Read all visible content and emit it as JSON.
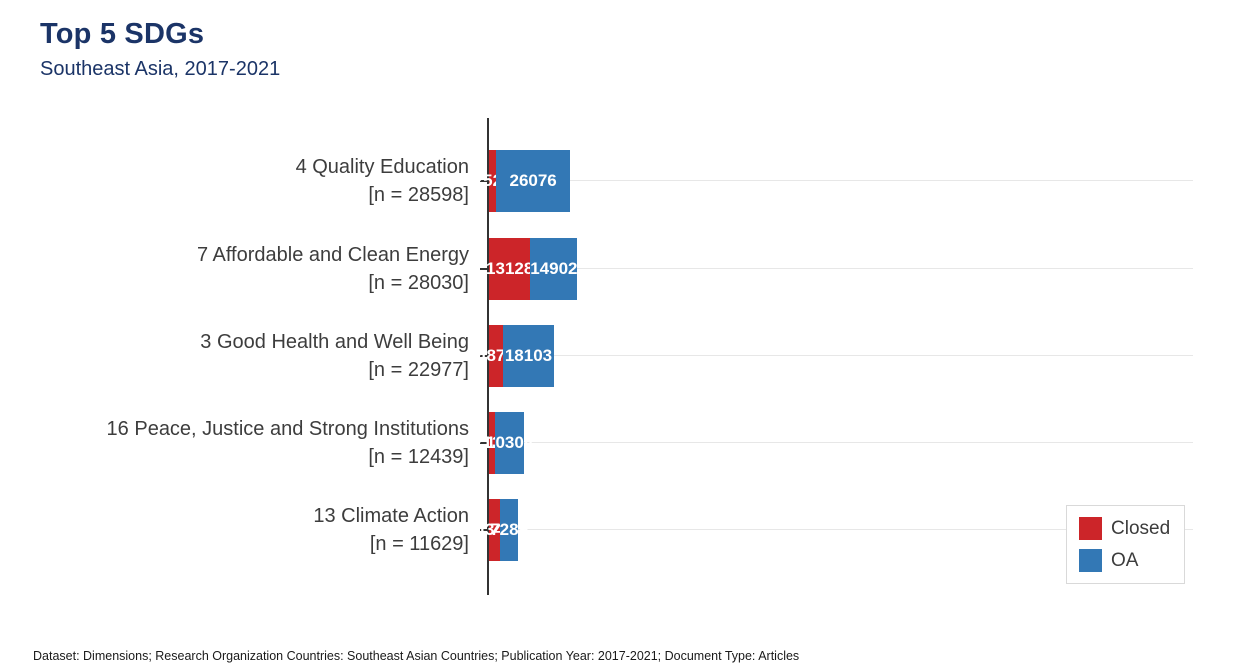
{
  "header": {
    "title": "Top 5 SDGs",
    "subtitle": "Southeast Asia, 2017-2021"
  },
  "colors": {
    "title_navy": "#1b3467",
    "label_gray": "#3d3d3d",
    "axis": "#333333",
    "gridline": "#e7e7e7",
    "closed_red": "#cc2529",
    "oa_blue": "#3378b5"
  },
  "legend": {
    "items": [
      {
        "label": "Closed",
        "color": "#cc2529"
      },
      {
        "label": "OA",
        "color": "#3378b5"
      }
    ]
  },
  "caption": "Dataset: Dimensions; Research Organization Countries: Southeast Asian Countries; Publication Year: 2017-2021; Document Type: Articles",
  "chart_data": {
    "type": "bar",
    "orientation": "horizontal",
    "stacked": true,
    "title": "Top 5 SDGs",
    "subtitle": "Southeast Asia, 2017-2021",
    "categories": [
      "4 Quality Education",
      "7 Affordable and Clean Energy",
      "3 Good Health and Well Being",
      "16 Peace, Justice and Strong Institutions",
      "13 Climate Action"
    ],
    "n_labels": [
      "[n = 28598]",
      "[n = 28030]",
      "[n = 22977]",
      "[n = 12439]",
      "[n = 11629]"
    ],
    "totals": [
      28598,
      28030,
      22977,
      12439,
      11629
    ],
    "series": [
      {
        "name": "Closed",
        "color": "#cc2529",
        "values": [
          2522,
          13128,
          4874,
          2135,
          4340
        ]
      },
      {
        "name": "OA",
        "color": "#3378b5",
        "values": [
          26076,
          14902,
          18103,
          10304,
          7289
        ]
      }
    ],
    "xlim": [
      0,
      30000
    ],
    "grid": true,
    "legend_position": "bottom-right",
    "value_labels": "inside-white-bold"
  }
}
